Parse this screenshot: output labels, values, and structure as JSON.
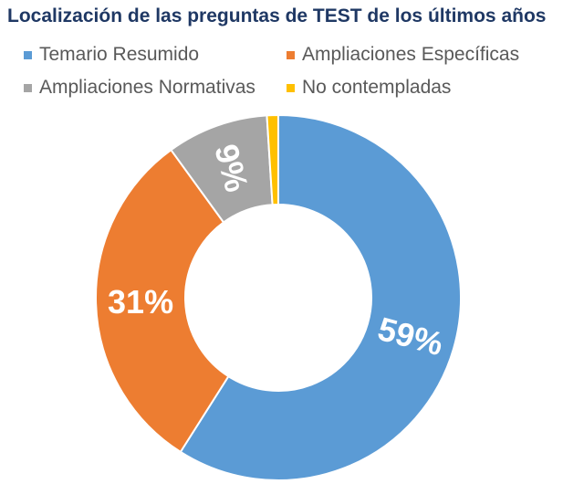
{
  "chart_data": {
    "type": "pie",
    "subtype": "donut",
    "title": "Localización de las preguntas de TEST de los últimos años",
    "categories": [
      "Temario Resumido",
      "Ampliaciones Específicas",
      "Ampliaciones Normativas",
      "No contempladas"
    ],
    "values": [
      59,
      31,
      9,
      1
    ],
    "data_labels": [
      "59%",
      "31%",
      "9%",
      ""
    ],
    "colors": [
      "#5b9bd5",
      "#ed7d31",
      "#a5a5a5",
      "#ffc000"
    ],
    "legend_position": "top"
  }
}
